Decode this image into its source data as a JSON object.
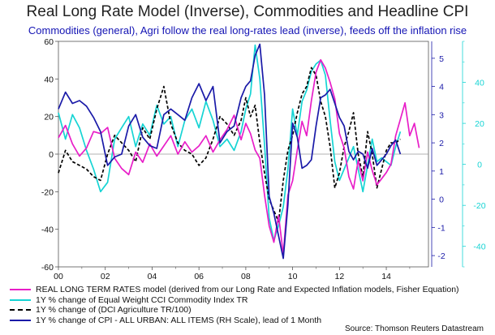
{
  "title": "Real Long Rate Model (Inverse), Commodities and Headline CPI",
  "subtitle": "Commodities (general), Agri follow the real long-rates lead (inverse), feeds off the inflation rise",
  "source": "Source: Thomson Reuters Datastream",
  "colors": {
    "real_rates": "#e81ec8",
    "cci": "#16d4d4",
    "agri": "#000000",
    "cpi": "#1a1aa8",
    "axis": "#555555",
    "grid_zero": "#9a9a9a"
  },
  "chart_data": {
    "type": "line",
    "title": "Real Long Rate Model (Inverse), Commodities and Headline CPI",
    "subtitle": "Commodities (general), Agri follow the real long-rates lead (inverse), feeds off the inflation rise",
    "x_ticks": [
      "00",
      "02",
      "04",
      "06",
      "08",
      "10",
      "12",
      "14"
    ],
    "x_tick_values": [
      2000,
      2002,
      2004,
      2006,
      2008,
      2010,
      2012,
      2014
    ],
    "xlim": [
      2000,
      2015.8
    ],
    "left_axis": {
      "ylim": [
        -60,
        60
      ],
      "ticks": [
        -60,
        -40,
        -20,
        0,
        20,
        40,
        60
      ]
    },
    "right_axis_cpi": {
      "ylim": [
        -2.4,
        5.6
      ],
      "ticks": [
        -2,
        -1,
        0,
        1,
        2,
        3,
        4,
        5
      ],
      "label": "RH Scale"
    },
    "right_axis_real": {
      "ylim": [
        -50,
        60
      ],
      "ticks": [
        -40,
        -20,
        0,
        20,
        40
      ]
    },
    "legend_placement": "bottom",
    "grid": "zero line only",
    "series": [
      {
        "name": "REAL LONG TERM RATES model (derived from our Long Rate and Expected Inflation models, Fisher Equation)",
        "axis": "right_axis_real",
        "color": "#e81ec8",
        "x": [
          2000.0,
          2000.3,
          2000.6,
          2000.9,
          2001.2,
          2001.5,
          2001.8,
          2002.1,
          2002.4,
          2002.7,
          2003.0,
          2003.3,
          2003.6,
          2003.9,
          2004.2,
          2004.5,
          2004.8,
          2005.1,
          2005.4,
          2005.7,
          2006.0,
          2006.3,
          2006.6,
          2006.9,
          2007.2,
          2007.5,
          2007.8,
          2008.0,
          2008.2,
          2008.4,
          2008.6,
          2008.8,
          2009.0,
          2009.2,
          2009.4,
          2009.6,
          2009.8,
          2010.0,
          2010.2,
          2010.4,
          2010.6,
          2010.8,
          2011.0,
          2011.2,
          2011.4,
          2011.6,
          2011.8,
          2012.0,
          2012.2,
          2012.4,
          2012.6,
          2012.8,
          2013.0,
          2013.2,
          2013.4,
          2013.6,
          2013.8,
          2014.0,
          2014.2,
          2014.4,
          2014.6,
          2014.8,
          2015.0,
          2015.2,
          2015.4
        ],
        "y": [
          13,
          19,
          10,
          4,
          8,
          16,
          15,
          18,
          3,
          -2,
          -5,
          6,
          1,
          10,
          4,
          9,
          14,
          5,
          11,
          6,
          9,
          14,
          6,
          12,
          17,
          24,
          12,
          20,
          15,
          7,
          3,
          -15,
          -30,
          -38,
          -25,
          -44,
          -15,
          -8,
          7,
          21,
          14,
          31,
          45,
          51,
          47,
          40,
          32,
          15,
          8,
          -6,
          -12,
          2,
          -8,
          6,
          -3,
          -10,
          -7,
          -4,
          0,
          14,
          22,
          30,
          14,
          20,
          8
        ]
      },
      {
        "name": "1Y % change of  Equal Weight CCI Commodity Index TR",
        "axis": "left_axis",
        "color": "#16d4d4",
        "x": [
          2000.0,
          2000.3,
          2000.6,
          2000.9,
          2001.2,
          2001.5,
          2001.8,
          2002.1,
          2002.4,
          2002.7,
          2003.0,
          2003.3,
          2003.6,
          2003.9,
          2004.2,
          2004.5,
          2004.8,
          2005.1,
          2005.4,
          2005.7,
          2006.0,
          2006.3,
          2006.6,
          2006.9,
          2007.2,
          2007.5,
          2007.8,
          2008.0,
          2008.2,
          2008.4,
          2008.6,
          2008.8,
          2009.0,
          2009.2,
          2009.4,
          2009.6,
          2009.8,
          2010.0,
          2010.2,
          2010.4,
          2010.6,
          2010.8,
          2011.0,
          2011.2,
          2011.4,
          2011.6,
          2011.8,
          2012.0,
          2012.2,
          2012.4,
          2012.6,
          2012.8,
          2013.0,
          2013.2,
          2013.4,
          2013.6,
          2013.8,
          2014.0,
          2014.2,
          2014.4,
          2014.6
        ],
        "y": [
          22,
          8,
          21,
          14,
          2,
          -8,
          -20,
          -15,
          8,
          14,
          20,
          4,
          16,
          10,
          26,
          16,
          20,
          4,
          18,
          24,
          14,
          28,
          18,
          4,
          8,
          2,
          12,
          24,
          32,
          58,
          40,
          5,
          -34,
          -46,
          -38,
          -28,
          -8,
          24,
          10,
          28,
          34,
          44,
          48,
          50,
          42,
          18,
          -4,
          -14,
          -8,
          -2,
          4,
          -8,
          -20,
          -6,
          8,
          -4,
          -2,
          -4,
          -6,
          4,
          12
        ]
      },
      {
        "name": "1Y % change of (DCI Agriculture TR/100)",
        "axis": "left_axis",
        "color": "#000000",
        "dashed": true,
        "x": [
          2000.0,
          2000.3,
          2000.6,
          2000.9,
          2001.2,
          2001.5,
          2001.8,
          2002.1,
          2002.4,
          2002.7,
          2003.0,
          2003.3,
          2003.6,
          2003.9,
          2004.2,
          2004.5,
          2004.8,
          2005.1,
          2005.4,
          2005.7,
          2006.0,
          2006.3,
          2006.6,
          2006.9,
          2007.2,
          2007.5,
          2007.8,
          2008.0,
          2008.2,
          2008.4,
          2008.6,
          2008.8,
          2009.0,
          2009.2,
          2009.4,
          2009.6,
          2009.8,
          2010.0,
          2010.2,
          2010.4,
          2010.6,
          2010.8,
          2011.0,
          2011.2,
          2011.4,
          2011.6,
          2011.8,
          2012.0,
          2012.2,
          2012.4,
          2012.6,
          2012.8,
          2013.0,
          2013.2,
          2013.4,
          2013.6,
          2013.8,
          2014.0,
          2014.2,
          2014.4,
          2014.6
        ],
        "y": [
          -10,
          2,
          -4,
          -6,
          -8,
          -12,
          -14,
          0,
          10,
          6,
          2,
          -4,
          14,
          8,
          24,
          36,
          16,
          6,
          2,
          0,
          -6,
          -2,
          8,
          20,
          16,
          10,
          18,
          30,
          20,
          26,
          6,
          -10,
          -24,
          -30,
          -36,
          -14,
          2,
          10,
          22,
          32,
          36,
          46,
          42,
          28,
          20,
          4,
          -18,
          -10,
          4,
          12,
          22,
          0,
          -12,
          12,
          0,
          -18,
          -8,
          2,
          6,
          6,
          8
        ]
      },
      {
        "name": "1Y % change of CPI - ALL URBAN: ALL ITEMS (RH Scale), lead of 1 Month",
        "axis": "right_axis_cpi",
        "color": "#1a1aa8",
        "x": [
          2000.0,
          2000.3,
          2000.6,
          2000.9,
          2001.2,
          2001.5,
          2001.8,
          2002.1,
          2002.4,
          2002.7,
          2003.0,
          2003.3,
          2003.6,
          2003.9,
          2004.2,
          2004.5,
          2004.8,
          2005.1,
          2005.4,
          2005.7,
          2006.0,
          2006.3,
          2006.6,
          2006.9,
          2007.2,
          2007.5,
          2007.8,
          2008.0,
          2008.2,
          2008.4,
          2008.6,
          2008.8,
          2009.0,
          2009.2,
          2009.4,
          2009.6,
          2009.8,
          2010.0,
          2010.2,
          2010.4,
          2010.6,
          2010.8,
          2011.0,
          2011.2,
          2011.4,
          2011.6,
          2011.8,
          2012.0,
          2012.2,
          2012.4,
          2012.6,
          2012.8,
          2013.0,
          2013.2,
          2013.4,
          2013.6,
          2013.8,
          2014.0,
          2014.2,
          2014.4,
          2014.6
        ],
        "y": [
          3.2,
          3.8,
          3.4,
          3.5,
          3.3,
          2.9,
          2.4,
          1.2,
          1.5,
          1.6,
          2.6,
          3.0,
          2.2,
          1.9,
          1.8,
          3.0,
          3.2,
          3.0,
          2.8,
          3.6,
          4.1,
          3.5,
          4.0,
          2.0,
          2.4,
          2.6,
          3.6,
          4.0,
          4.2,
          5.1,
          5.5,
          3.7,
          0.1,
          -0.5,
          -1.3,
          -2.1,
          -0.2,
          2.7,
          2.2,
          1.1,
          1.2,
          1.4,
          2.6,
          3.6,
          3.7,
          3.9,
          3.4,
          2.9,
          2.6,
          1.7,
          1.4,
          1.7,
          1.6,
          1.1,
          1.8,
          1.2,
          1.4,
          1.6,
          1.9,
          2.1,
          1.6
        ]
      }
    ]
  },
  "legend": [
    {
      "label": "REAL LONG TERM RATES model (derived from our Long Rate and Expected Inflation models, Fisher Equation)",
      "color": "#e81ec8",
      "dashed": false
    },
    {
      "label": "1Y % change of  Equal Weight CCI Commodity Index TR",
      "color": "#16d4d4",
      "dashed": false
    },
    {
      "label": "1Y % change of (DCI Agriculture TR/100)",
      "color": "#000000",
      "dashed": true
    },
    {
      "label": "1Y % change of CPI - ALL URBAN: ALL ITEMS (RH Scale), lead of 1 Month",
      "color": "#1a1aa8",
      "dashed": false
    }
  ]
}
